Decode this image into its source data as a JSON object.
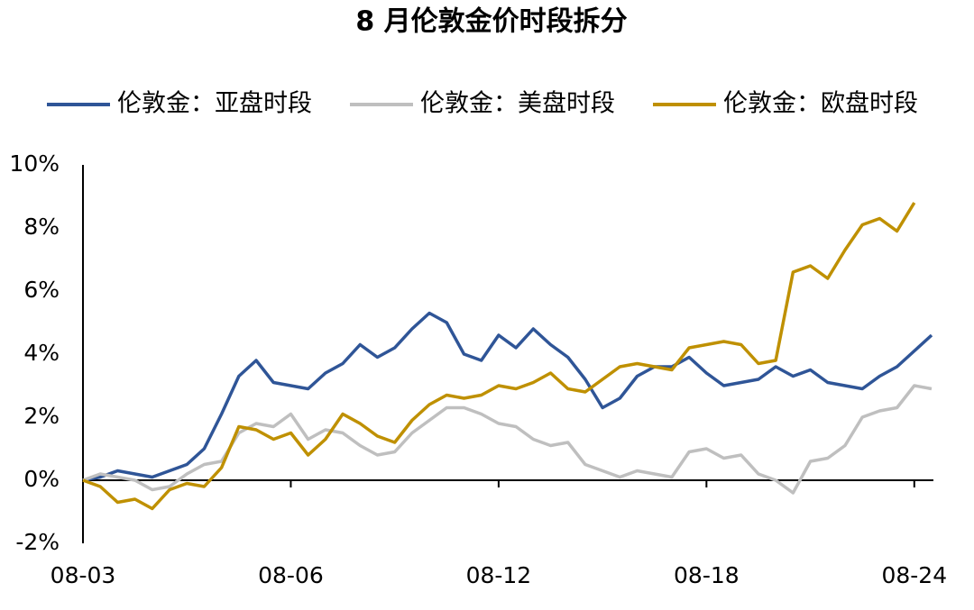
{
  "chart_data": {
    "type": "line",
    "title": "8 月伦敦金价时段拆分",
    "x": [
      0,
      2,
      4,
      6,
      8,
      10,
      12,
      14,
      16,
      18,
      20,
      22,
      24,
      26,
      28,
      30,
      32,
      34,
      36,
      38,
      40,
      42,
      44,
      46,
      48,
      50,
      52,
      54,
      56,
      58,
      60,
      62,
      64,
      66,
      68,
      70,
      72,
      74,
      76,
      78,
      80,
      82,
      84,
      86,
      88,
      90,
      92,
      94,
      96,
      98
    ],
    "series": [
      {
        "name": "伦敦金：亚盘时段",
        "color": "#2f5597",
        "values": [
          0,
          0.1,
          0.3,
          0.2,
          0.1,
          0.3,
          0.5,
          1.0,
          2.1,
          3.3,
          3.8,
          3.1,
          3.0,
          2.9,
          3.4,
          3.7,
          4.3,
          3.9,
          4.2,
          4.8,
          5.3,
          5.0,
          4.0,
          3.8,
          4.6,
          4.2,
          4.8,
          4.3,
          3.9,
          3.2,
          2.3,
          2.6,
          3.3,
          3.6,
          3.6,
          3.9,
          3.4,
          3.0,
          3.1,
          3.2,
          3.6,
          3.3,
          3.5,
          3.1,
          3.0,
          2.9,
          3.3,
          3.6,
          4.1,
          4.6
        ]
      },
      {
        "name": "伦敦金：美盘时段",
        "color": "#bfbfbf",
        "values": [
          0,
          0.2,
          0.1,
          0.0,
          -0.3,
          -0.2,
          0.2,
          0.5,
          0.6,
          1.5,
          1.8,
          1.7,
          2.1,
          1.3,
          1.6,
          1.5,
          1.1,
          0.8,
          0.9,
          1.5,
          1.9,
          2.3,
          2.3,
          2.1,
          1.8,
          1.7,
          1.3,
          1.1,
          1.2,
          0.5,
          0.3,
          0.1,
          0.3,
          0.2,
          0.1,
          0.9,
          1.0,
          0.7,
          0.8,
          0.2,
          0.0,
          -0.4,
          0.6,
          0.7,
          1.1,
          2.0,
          2.2,
          2.3,
          3.0,
          2.9
        ]
      },
      {
        "name": "伦敦金：欧盘时段",
        "color": "#bf9000",
        "values": [
          0,
          -0.2,
          -0.7,
          -0.6,
          -0.9,
          -0.3,
          -0.1,
          -0.2,
          0.4,
          1.7,
          1.6,
          1.3,
          1.5,
          0.8,
          1.3,
          2.1,
          1.8,
          1.4,
          1.2,
          1.9,
          2.4,
          2.7,
          2.6,
          2.7,
          3.0,
          2.9,
          3.1,
          3.4,
          2.9,
          2.8,
          3.2,
          3.6,
          3.7,
          3.6,
          3.5,
          4.2,
          4.3,
          4.4,
          4.3,
          3.7,
          3.8,
          6.6,
          6.8,
          6.4,
          7.3,
          8.1,
          8.3,
          7.9,
          8.8,
          null
        ]
      }
    ],
    "xlim": [
      0,
      98
    ],
    "xticks": [
      {
        "value": 0,
        "label": "08-03"
      },
      {
        "value": 24,
        "label": "08-06"
      },
      {
        "value": 48,
        "label": "08-12"
      },
      {
        "value": 72,
        "label": "08-18"
      },
      {
        "value": 96,
        "label": "08-24"
      }
    ],
    "ylim": [
      -2,
      10
    ],
    "yticks": [
      {
        "value": -2,
        "label": "-2%"
      },
      {
        "value": 0,
        "label": "0%"
      },
      {
        "value": 2,
        "label": "2%"
      },
      {
        "value": 4,
        "label": "4%"
      },
      {
        "value": 6,
        "label": "6%"
      },
      {
        "value": 8,
        "label": "8%"
      },
      {
        "value": 10,
        "label": "10%"
      }
    ],
    "legend": "top",
    "grid": false
  }
}
